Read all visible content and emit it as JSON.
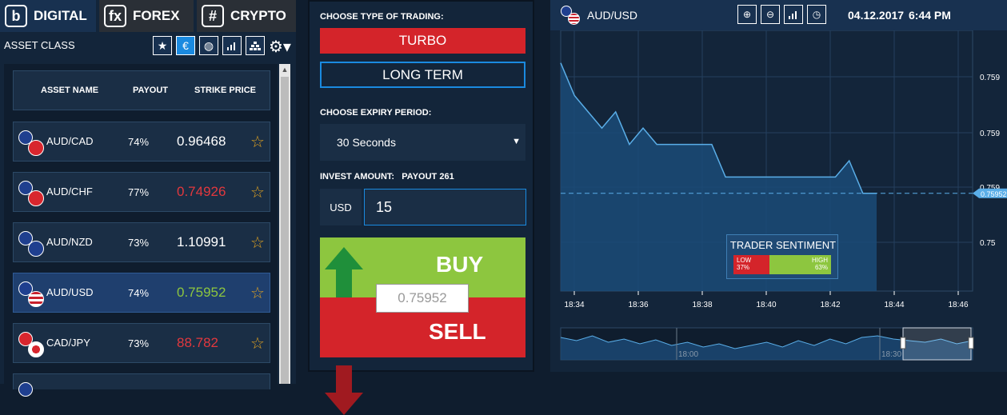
{
  "tabs": [
    {
      "icon": "b",
      "label": "DIGITAL"
    },
    {
      "icon": "fx",
      "label": "FOREX"
    },
    {
      "icon": "#",
      "label": "CRYPTO"
    }
  ],
  "asset_class": {
    "label": "ASSET CLASS",
    "filters": [
      "star-icon",
      "euro-icon",
      "globe-icon",
      "bar-chart-icon",
      "pyramid-icon"
    ]
  },
  "table_headers": {
    "name": "ASSET NAME",
    "payout": "PAYOUT",
    "strike": "STRIKE PRICE"
  },
  "assets": [
    {
      "name": "AUD/CAD",
      "payout": "74%",
      "price": "0.96468",
      "price_color": "#ffffff",
      "selected": false
    },
    {
      "name": "AUD/CHF",
      "payout": "77%",
      "price": "0.74926",
      "price_color": "#e2383e",
      "selected": false
    },
    {
      "name": "AUD/NZD",
      "payout": "73%",
      "price": "1.10991",
      "price_color": "#ffffff",
      "selected": false
    },
    {
      "name": "AUD/USD",
      "payout": "74%",
      "price": "0.75952",
      "price_color": "#8dc63f",
      "selected": true
    },
    {
      "name": "CAD/JPY",
      "payout": "73%",
      "price": "88.782",
      "price_color": "#e2383e",
      "selected": false
    }
  ],
  "trading": {
    "type_label": "CHOOSE TYPE OF TRADING:",
    "turbo": "TURBO",
    "long_term": "LONG TERM",
    "expiry_label": "CHOOSE EXPIRY PERIOD:",
    "expiry_value": "30 Seconds",
    "invest_label": "INVEST AMOUNT:",
    "payout_label": "PAYOUT 261",
    "currency": "USD",
    "amount": "15",
    "buy": "BUY",
    "sell": "SELL",
    "current_price": "0.75952"
  },
  "chart": {
    "pair": "AUD/USD",
    "date": "04.12.2017",
    "time": "6:44 PM",
    "graph_type": "Graph Type: Area",
    "price_tag": "0.75952",
    "y_ticks": [
      "0.759",
      "0.759",
      "0.759",
      "0.75"
    ],
    "x_ticks": [
      "18:34",
      "18:36",
      "18:38",
      "18:40",
      "18:42",
      "18:44",
      "18:46"
    ],
    "nav_ticks": [
      "18:00",
      "18:30"
    ],
    "tools": [
      "zoom-in-icon",
      "zoom-out-icon",
      "bar-chart-icon",
      "clock-icon"
    ],
    "sentiment": {
      "title": "TRADER SENTIMENT",
      "low_label": "LOW",
      "low_pct": "37%",
      "high_label": "HIGH",
      "high_pct": "63%",
      "low_share": 0.37
    },
    "colors": {
      "line": "#5aaee8",
      "area": "#1b4b78",
      "up": "#8dc63f",
      "down": "#d4242a"
    }
  },
  "chart_data": {
    "type": "area",
    "title": "",
    "xlabel": "",
    "ylabel": "",
    "x": [
      "18:33:30",
      "18:34",
      "18:34:20",
      "18:34:40",
      "18:35",
      "18:35:20",
      "18:35:40",
      "18:36",
      "18:36:30",
      "18:37",
      "18:37:30",
      "18:38",
      "18:38:30",
      "18:39",
      "18:39:30",
      "18:40",
      "18:40:30",
      "18:41",
      "18:41:30",
      "18:42",
      "18:42:30",
      "18:42:45",
      "18:43",
      "18:43:30"
    ],
    "values": [
      0.7596,
      0.75958,
      0.75957,
      0.75956,
      0.75957,
      0.75955,
      0.75956,
      0.75955,
      0.75955,
      0.75955,
      0.75955,
      0.75955,
      0.75953,
      0.75953,
      0.75953,
      0.75953,
      0.75953,
      0.75953,
      0.75953,
      0.75953,
      0.75953,
      0.75954,
      0.75952,
      0.75952
    ],
    "grid": true
  }
}
